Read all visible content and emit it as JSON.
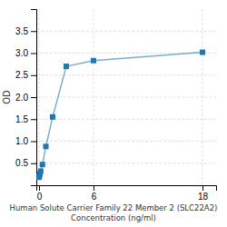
{
  "chart_data": {
    "type": "line",
    "x_label": [
      "Human Solute Carrier Family 22 Member 2 (SLC22A2)",
      "Concentration (ng/ml)"
    ],
    "y_label": "OD",
    "x": [
      0.0,
      0.047,
      0.094,
      0.188,
      0.375,
      0.75,
      1.5,
      3.0,
      6.0,
      18.0
    ],
    "values": [
      0.18,
      0.22,
      0.26,
      0.32,
      0.47,
      0.88,
      1.55,
      2.7,
      2.83,
      3.02
    ],
    "xlim": [
      -0.3,
      19.5
    ],
    "ylim": [
      0,
      4.0
    ],
    "xticks": [
      0,
      6,
      18
    ],
    "yticks": [
      0.5,
      {
        "value": 1.0,
        "label": "1.0"
      },
      1.5,
      {
        "value": 2.0,
        "label": "2.0"
      },
      2.5,
      {
        "value": 3.0,
        "label": "3.0"
      },
      3.5
    ],
    "grid": true,
    "marker": "square"
  }
}
